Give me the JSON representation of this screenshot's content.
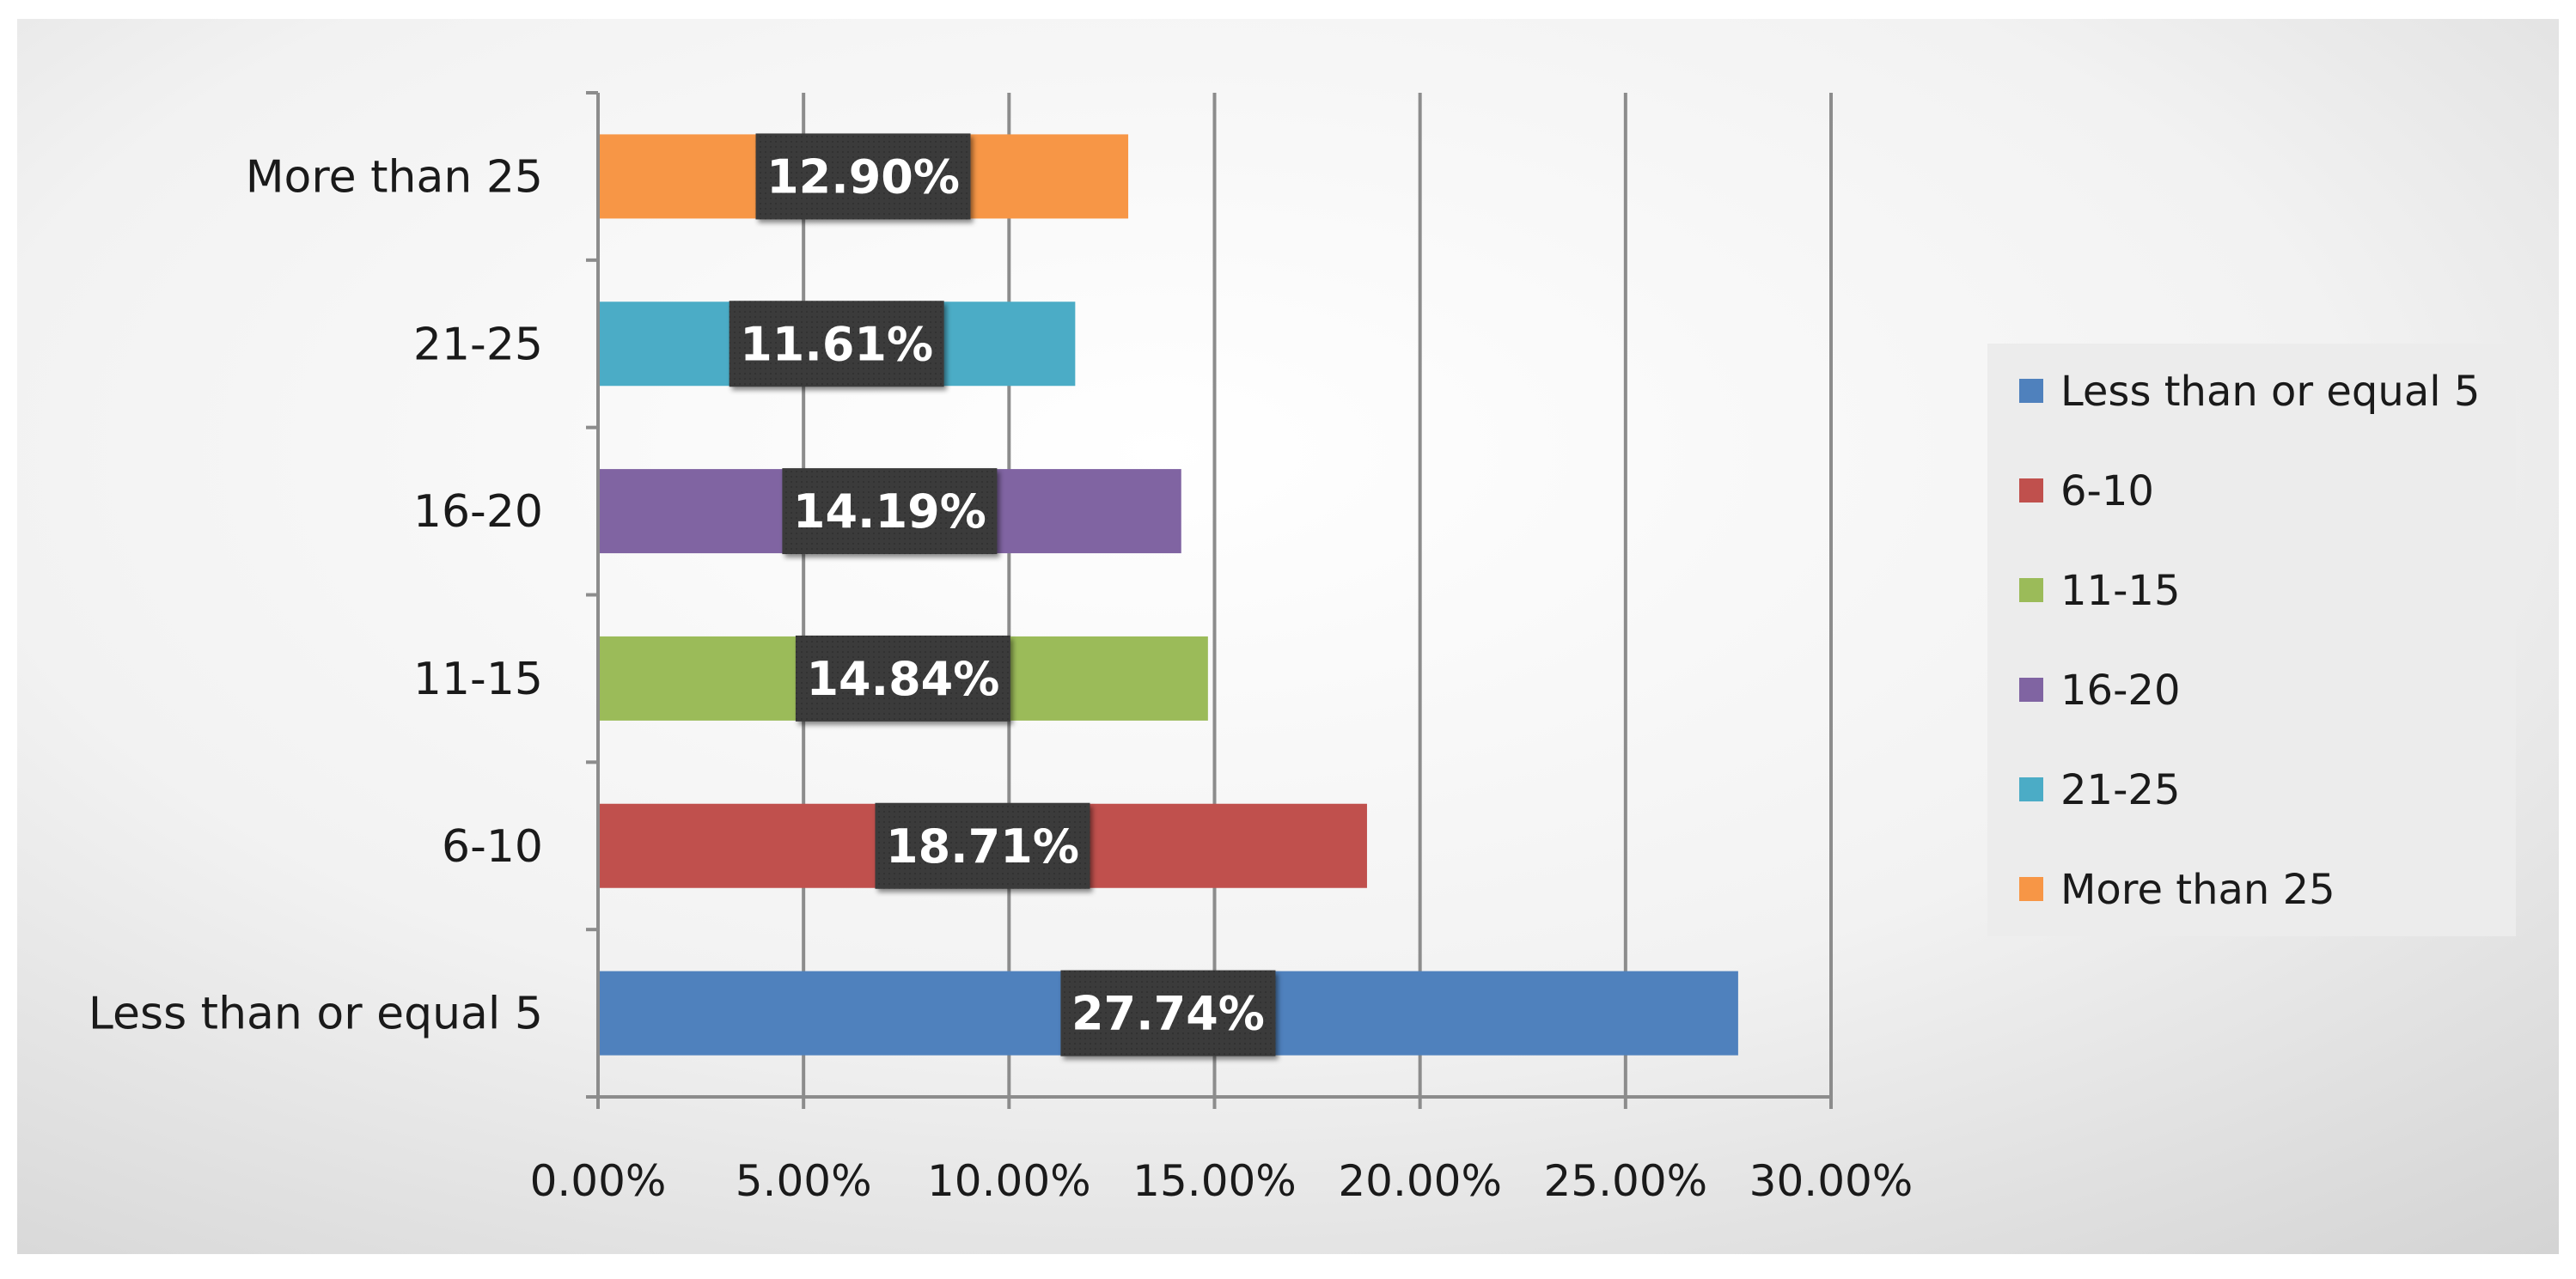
{
  "chart_data": {
    "type": "bar",
    "orientation": "horizontal",
    "categories": [
      "Less than or equal 5",
      "6-10",
      "11-15",
      "16-20",
      "21-25",
      "More than 25"
    ],
    "values": [
      27.74,
      18.71,
      14.84,
      14.19,
      11.61,
      12.9
    ],
    "data_labels": [
      "27.74%",
      "18.71%",
      "14.84%",
      "14.19%",
      "11.61%",
      "12.90%"
    ],
    "colors": [
      "#4F81BD",
      "#C0504D",
      "#9BBB59",
      "#8064A2",
      "#4BACC6",
      "#F79646"
    ],
    "xlim": [
      0,
      30
    ],
    "xticks": [
      "0.00%",
      "5.00%",
      "10.00%",
      "15.00%",
      "20.00%",
      "25.00%",
      "30.00%"
    ],
    "grid": true,
    "legend": {
      "position": "right",
      "entries": [
        "Less than or equal 5",
        "6-10",
        "11-15",
        "16-20",
        "21-25",
        "More than 25"
      ]
    },
    "background": "gray gradient"
  }
}
